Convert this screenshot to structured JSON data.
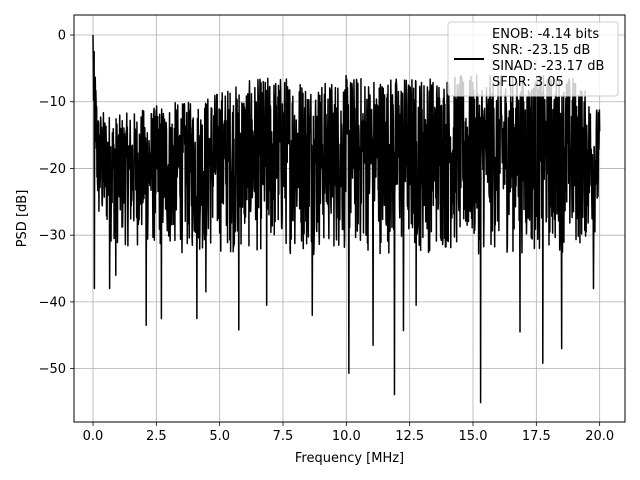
{
  "chart_data": {
    "type": "line",
    "title": "",
    "xlabel": "Frequency [MHz]",
    "ylabel": "PSD [dB]",
    "xlim": [
      -0.75,
      21.0
    ],
    "ylim": [
      -58.0,
      3.0
    ],
    "grid": true,
    "legend_placement": "top-right",
    "x_ticks": [
      0.0,
      2.5,
      5.0,
      7.5,
      10.0,
      12.5,
      15.0,
      17.5,
      20.0
    ],
    "x_tick_labels": [
      "0.0",
      "2.5",
      "5.0",
      "7.5",
      "10.0",
      "12.5",
      "15.0",
      "17.5",
      "20.0"
    ],
    "y_ticks": [
      0,
      -10,
      -20,
      -30,
      -40,
      -50
    ],
    "y_tick_labels": [
      "0",
      "−10",
      "−20",
      "−30",
      "−40",
      "−50"
    ],
    "series": [
      {
        "name": "ENOB: -4.14 bits\nSNR: -23.15 dB\nSINAD: -23.17 dB\nSFDR: 3.05",
        "color": "#000000",
        "x_range": [
          0.0,
          20.0
        ],
        "upper_envelope": [
          [
            0.0,
            0.0
          ],
          [
            0.2,
            -11
          ],
          [
            1.0,
            -12
          ],
          [
            2.0,
            -11
          ],
          [
            3.0,
            -10
          ],
          [
            4.0,
            -10
          ],
          [
            5.0,
            -8
          ],
          [
            6.0,
            -7
          ],
          [
            7.0,
            -6
          ],
          [
            8.0,
            -6
          ],
          [
            9.0,
            -7
          ],
          [
            10.0,
            -6
          ],
          [
            11.0,
            -6
          ],
          [
            12.0,
            -6
          ],
          [
            13.0,
            -6
          ],
          [
            14.0,
            -6
          ],
          [
            15.0,
            -6
          ],
          [
            16.0,
            -6
          ],
          [
            17.0,
            -6
          ],
          [
            18.0,
            -6
          ],
          [
            19.0,
            -6
          ],
          [
            20.0,
            -11
          ]
        ],
        "lower_envelope": [
          [
            0.0,
            -14
          ],
          [
            0.2,
            -30
          ],
          [
            1.0,
            -32
          ],
          [
            2.0,
            -32
          ],
          [
            3.0,
            -33
          ],
          [
            4.0,
            -33
          ],
          [
            5.0,
            -33
          ],
          [
            6.0,
            -33
          ],
          [
            7.0,
            -33
          ],
          [
            8.0,
            -33
          ],
          [
            9.0,
            -33
          ],
          [
            10.0,
            -33
          ],
          [
            11.0,
            -33
          ],
          [
            12.0,
            -33
          ],
          [
            13.0,
            -33
          ],
          [
            14.0,
            -33
          ],
          [
            15.0,
            -33
          ],
          [
            16.0,
            -33
          ],
          [
            17.0,
            -33
          ],
          [
            18.0,
            -33
          ],
          [
            19.0,
            -33
          ],
          [
            20.0,
            -30
          ]
        ],
        "deep_dips": [
          [
            0.05,
            -38
          ],
          [
            0.65,
            -38
          ],
          [
            0.9,
            -36
          ],
          [
            2.1,
            -43.5
          ],
          [
            2.7,
            -42.5
          ],
          [
            4.1,
            -42.5
          ],
          [
            4.45,
            -38.5
          ],
          [
            5.75,
            -44.2
          ],
          [
            6.85,
            -40.5
          ],
          [
            8.65,
            -42
          ],
          [
            10.1,
            -50.7
          ],
          [
            11.05,
            -46.5
          ],
          [
            11.9,
            -53.9
          ],
          [
            12.25,
            -44.3
          ],
          [
            12.75,
            -40.5
          ],
          [
            15.3,
            -55.1
          ],
          [
            16.85,
            -44.5
          ],
          [
            17.75,
            -49.2
          ],
          [
            18.5,
            -47
          ],
          [
            19.75,
            -38
          ]
        ]
      }
    ]
  }
}
